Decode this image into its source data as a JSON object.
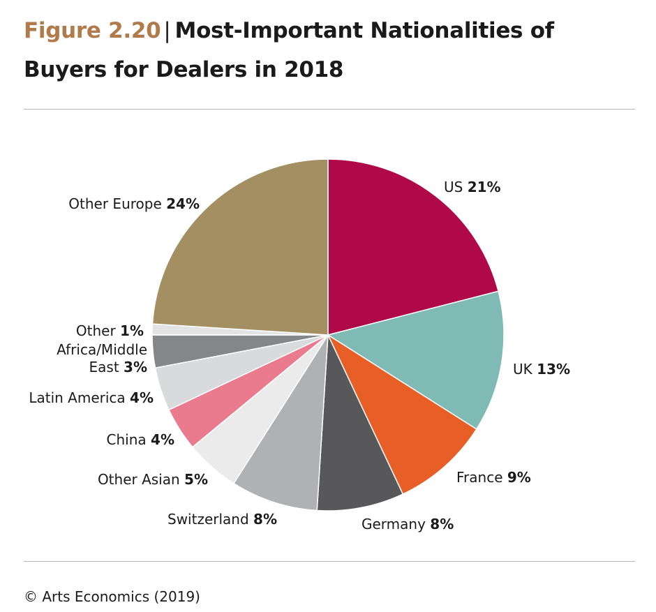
{
  "header": {
    "figure_number": "Figure 2.20",
    "separator": "|",
    "title_line1": "Most-Important Nationalities of",
    "title_line2": "Buyers for Dealers in 2018"
  },
  "chart_data": {
    "type": "pie",
    "title": "Most-Important Nationalities of Buyers for Dealers in 2018",
    "unit": "%",
    "slices": [
      {
        "name": "US",
        "value": 21,
        "label": "21%",
        "color": "#b0094a"
      },
      {
        "name": "UK",
        "value": 13,
        "label": "13%",
        "color": "#80bab5"
      },
      {
        "name": "France",
        "value": 9,
        "label": "9%",
        "color": "#e75e27"
      },
      {
        "name": "Germany",
        "value": 8,
        "label": "8%",
        "color": "#58585a"
      },
      {
        "name": "Switzerland",
        "value": 8,
        "label": "8%",
        "color": "#b0b1b3"
      },
      {
        "name": "Other Asian",
        "value": 5,
        "label": "5%",
        "color": "#ebebeb"
      },
      {
        "name": "China",
        "value": 4,
        "label": "4%",
        "color": "#ea7a8d"
      },
      {
        "name": "Latin America",
        "value": 4,
        "label": "4%",
        "color": "#d9dadb"
      },
      {
        "name": "Africa/Middle East",
        "value": 3,
        "label": "3%",
        "color": "#858688"
      },
      {
        "name": "Other",
        "value": 1,
        "label": "1%",
        "color": "#e3e3e3"
      },
      {
        "name": "Other Europe",
        "value": 24,
        "label": "24%",
        "color": "#a38f62"
      }
    ]
  },
  "footer": {
    "source": "© Arts Economics (2019)"
  }
}
